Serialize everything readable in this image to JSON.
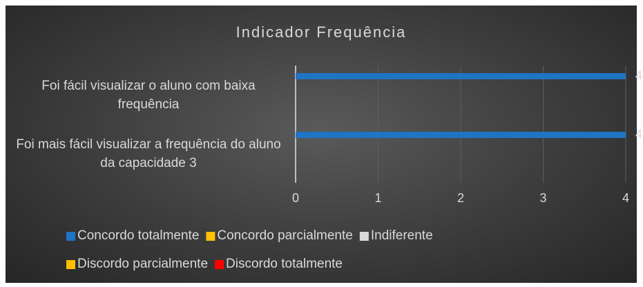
{
  "chart_data": {
    "type": "bar",
    "orientation": "horizontal",
    "title": "Indicador Frequência",
    "categories": [
      "Foi fácil visualizar o aluno com baixa frequência",
      "Foi mais fácil visualizar a frequência do aluno da capacidade 3"
    ],
    "series": [
      {
        "name": "Concordo totalmente",
        "color": "#1f74c4",
        "values": [
          4,
          4
        ]
      },
      {
        "name": "Concordo parcialmente",
        "color": "#ffc000",
        "values": [
          0,
          0
        ]
      },
      {
        "name": "Indiferente",
        "color": "#d9d9d9",
        "values": [
          0,
          0
        ]
      },
      {
        "name": "Discordo parcialmente",
        "color": "#ffc000",
        "values": [
          0,
          0
        ]
      },
      {
        "name": "Discordo totalmente",
        "color": "#ff0000",
        "values": [
          0,
          0
        ]
      }
    ],
    "xlim": [
      0,
      4
    ],
    "xticks": [
      0,
      1,
      2,
      3,
      4
    ],
    "grid": true,
    "legend": "bottom"
  }
}
